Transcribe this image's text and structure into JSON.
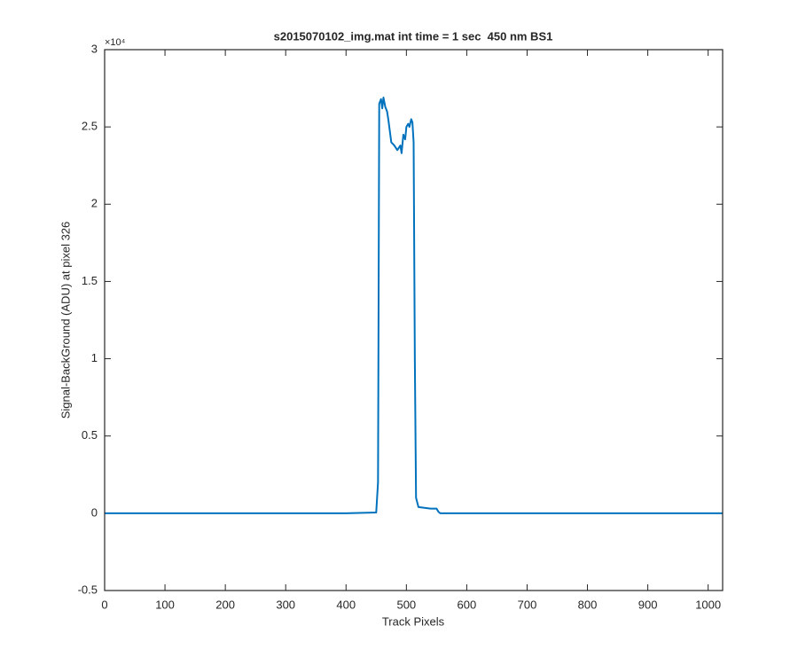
{
  "chart_data": {
    "type": "line",
    "title": "s2015070102_img.mat int time = 1 sec  450 nm BS1",
    "x_label": "Track Pixels",
    "y_label": "Signal-BackGround (ADU) at pixel 326",
    "y_exponent_label": "×10⁴",
    "xlim": [
      0,
      1024
    ],
    "ylim": [
      -5000,
      30000
    ],
    "xticks": [
      0,
      100,
      200,
      300,
      400,
      500,
      600,
      700,
      800,
      900,
      1000
    ],
    "yticks": [
      {
        "value": -5000,
        "label": "-0.5"
      },
      0,
      {
        "value": 5000,
        "label": "0.5"
      },
      {
        "value": 10000,
        "label": "1"
      },
      {
        "value": 15000,
        "label": "1.5"
      },
      {
        "value": 20000,
        "label": "2"
      },
      {
        "value": 25000,
        "label": "2.5"
      },
      {
        "value": 30000,
        "label": "3"
      }
    ],
    "grid": false,
    "x": [
      0,
      100,
      200,
      300,
      400,
      450,
      453,
      455,
      458,
      460,
      462,
      465,
      468,
      470,
      475,
      480,
      485,
      490,
      492,
      495,
      498,
      500,
      503,
      505,
      508,
      510,
      512,
      514,
      516,
      520,
      530,
      540,
      550,
      553,
      556,
      600,
      700,
      800,
      900,
      1000,
      1024
    ],
    "series": [
      {
        "color": "#0072bd",
        "values": [
          0,
          0,
          0,
          0,
          0,
          50,
          2000,
          26500,
          26800,
          26200,
          26900,
          26300,
          26000,
          25500,
          24000,
          23800,
          23500,
          23800,
          23300,
          24500,
          24200,
          25000,
          25200,
          25000,
          25500,
          25300,
          24000,
          10000,
          1000,
          400,
          350,
          300,
          300,
          100,
          0,
          0,
          0,
          0,
          0,
          0,
          0
        ]
      }
    ]
  }
}
